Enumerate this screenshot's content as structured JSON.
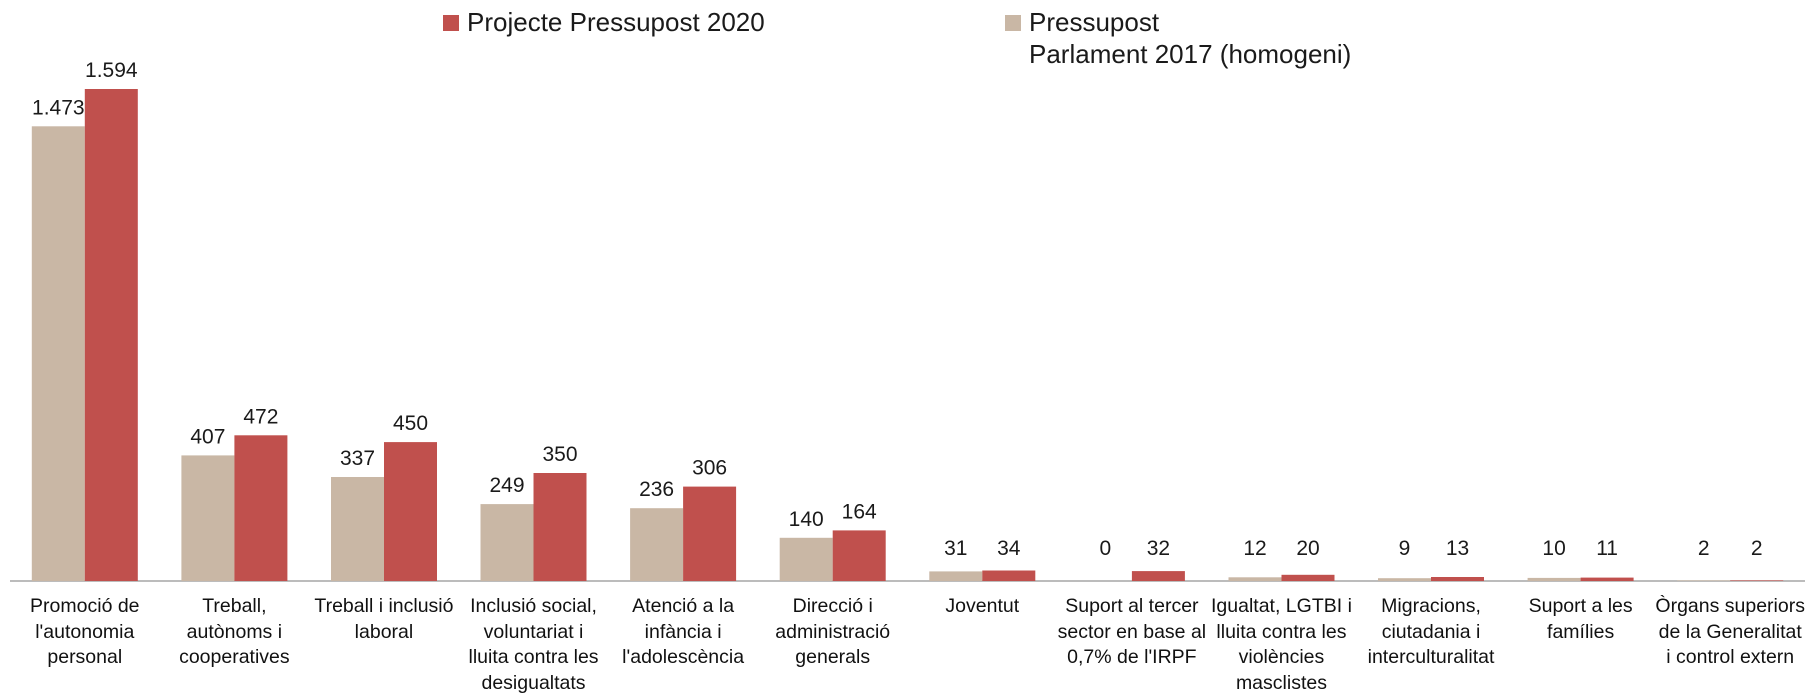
{
  "chart_data": {
    "type": "bar",
    "categories": [
      "Promoció de\nl'autonomia\npersonal",
      "Treball,\nautònoms i\ncooperatives",
      "Treball i inclusió\nlaboral",
      "Inclusió social,\nvoluntariat i\nlluita contra les\ndesigualtats",
      "Atenció a la\ninfància i\nl'adolescència",
      "Direcció i\nadministració\ngenerals",
      "Joventut",
      "Suport al tercer\nsector en base al\n0,7% de l'IRPF",
      "Igualtat, LGTBI i\nlluita contra les\nviolències\nmasclistes",
      "Migracions,\nciutadania i\ninterculturalitat",
      "Suport a les\nfamílies",
      "Òrgans superiors\nde la Generalitat\ni control extern"
    ],
    "series": [
      {
        "name": "Pressupost\nParlament 2017 (homogeni)",
        "color": "#c9b7a5",
        "values": [
          1473,
          407,
          337,
          249,
          236,
          140,
          31,
          0,
          12,
          9,
          10,
          2
        ],
        "labels": [
          "1.473",
          "407",
          "337",
          "249",
          "236",
          "140",
          "31",
          "0",
          "12",
          "9",
          "10",
          "2"
        ]
      },
      {
        "name": "Projecte Pressupost 2020",
        "color": "#c0504d",
        "values": [
          1594,
          472,
          450,
          350,
          306,
          164,
          34,
          32,
          20,
          13,
          11,
          2
        ],
        "labels": [
          "1.594",
          "472",
          "450",
          "350",
          "306",
          "164",
          "34",
          "32",
          "20",
          "13",
          "11",
          "2"
        ]
      }
    ],
    "legend_order": [
      1,
      0
    ],
    "legend_position": "top",
    "ylim": [
      0,
      1594
    ],
    "grid": false,
    "axis_color": "#a6a6a6"
  }
}
